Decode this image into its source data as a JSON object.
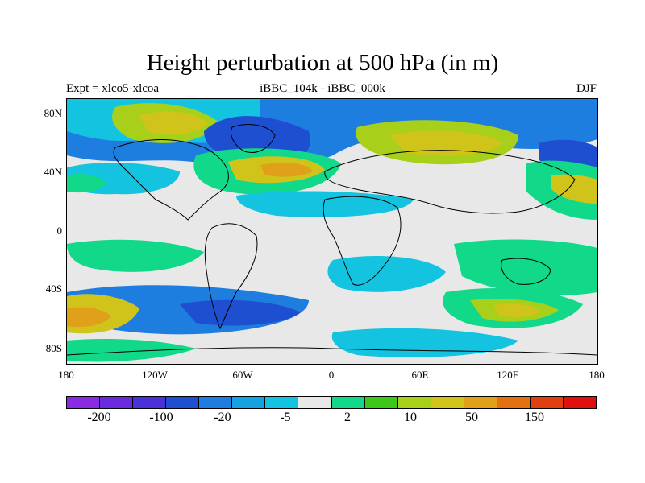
{
  "title": "Height perturbation at 500 hPa (in m)",
  "subtitle_left": "Expt = xlco5-xlcoa",
  "subtitle_center": "iBBC_104k - iBBC_000k",
  "subtitle_right": "DJF",
  "lat_labels": [
    "80N",
    "40N",
    "0",
    "40S",
    "80S"
  ],
  "lon_labels": [
    "180",
    "120W",
    "60W",
    "0",
    "60E",
    "120E",
    "180"
  ],
  "legend": {
    "colors": [
      "#8a2be2",
      "#6a2be0",
      "#4a32d8",
      "#1e4fd0",
      "#1e7ee0",
      "#14a3e0",
      "#14c3e0",
      "#e8e8e8",
      "#12d88a",
      "#3cc81a",
      "#a8d01a",
      "#d0c41a",
      "#e0a01a",
      "#e07010",
      "#e04010",
      "#e01010"
    ],
    "tick_labels": [
      "-200",
      "-100",
      "-20",
      "-5",
      "2",
      "10",
      "50",
      "150"
    ]
  },
  "map_colors": {
    "background": "#e8e8e8",
    "deep_blue": "#1e4fd0",
    "blue": "#1e7ee0",
    "light_blue": "#14c3e0",
    "green": "#12d88a",
    "lime": "#a8d01a",
    "yellow": "#d0c41a",
    "orange": "#e0a01a"
  }
}
